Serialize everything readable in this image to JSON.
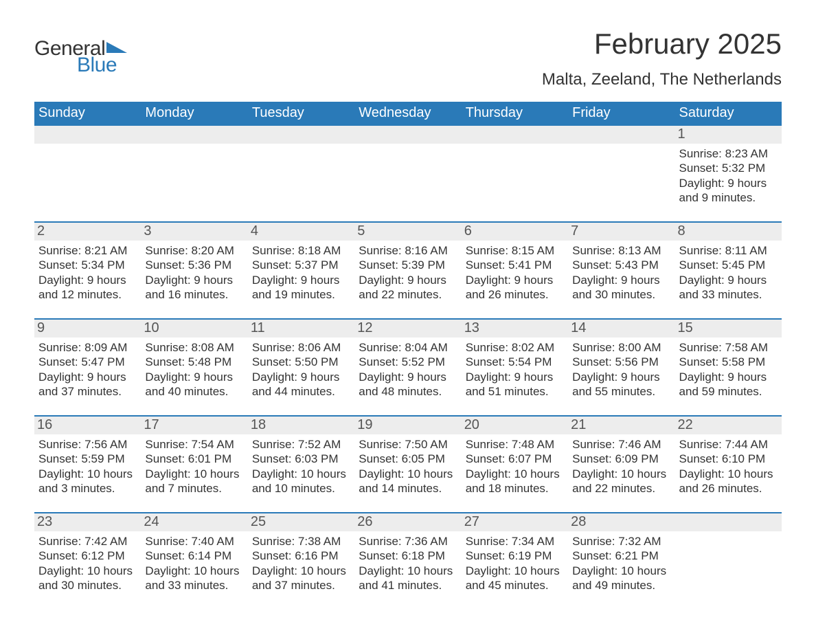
{
  "logo": {
    "general": "General",
    "blue": "Blue"
  },
  "title": "February 2025",
  "location": "Malta, Zeeland, The Netherlands",
  "colors": {
    "accent": "#2a7ab8",
    "header_bg": "#2a7ab8",
    "daynum_bg": "#ededed",
    "text": "#333333",
    "background": "#ffffff"
  },
  "fonts": {
    "title_size_pt": 42,
    "location_size_pt": 24,
    "dow_size_pt": 20,
    "daynum_size_pt": 20,
    "info_size_pt": 17
  },
  "dow": [
    "Sunday",
    "Monday",
    "Tuesday",
    "Wednesday",
    "Thursday",
    "Friday",
    "Saturday"
  ],
  "weeks": [
    [
      null,
      null,
      null,
      null,
      null,
      null,
      {
        "d": "1",
        "sr": "8:23 AM",
        "ss": "5:32 PM",
        "dl": "9 hours and 9 minutes."
      }
    ],
    [
      {
        "d": "2",
        "sr": "8:21 AM",
        "ss": "5:34 PM",
        "dl": "9 hours and 12 minutes."
      },
      {
        "d": "3",
        "sr": "8:20 AM",
        "ss": "5:36 PM",
        "dl": "9 hours and 16 minutes."
      },
      {
        "d": "4",
        "sr": "8:18 AM",
        "ss": "5:37 PM",
        "dl": "9 hours and 19 minutes."
      },
      {
        "d": "5",
        "sr": "8:16 AM",
        "ss": "5:39 PM",
        "dl": "9 hours and 22 minutes."
      },
      {
        "d": "6",
        "sr": "8:15 AM",
        "ss": "5:41 PM",
        "dl": "9 hours and 26 minutes."
      },
      {
        "d": "7",
        "sr": "8:13 AM",
        "ss": "5:43 PM",
        "dl": "9 hours and 30 minutes."
      },
      {
        "d": "8",
        "sr": "8:11 AM",
        "ss": "5:45 PM",
        "dl": "9 hours and 33 minutes."
      }
    ],
    [
      {
        "d": "9",
        "sr": "8:09 AM",
        "ss": "5:47 PM",
        "dl": "9 hours and 37 minutes."
      },
      {
        "d": "10",
        "sr": "8:08 AM",
        "ss": "5:48 PM",
        "dl": "9 hours and 40 minutes."
      },
      {
        "d": "11",
        "sr": "8:06 AM",
        "ss": "5:50 PM",
        "dl": "9 hours and 44 minutes."
      },
      {
        "d": "12",
        "sr": "8:04 AM",
        "ss": "5:52 PM",
        "dl": "9 hours and 48 minutes."
      },
      {
        "d": "13",
        "sr": "8:02 AM",
        "ss": "5:54 PM",
        "dl": "9 hours and 51 minutes."
      },
      {
        "d": "14",
        "sr": "8:00 AM",
        "ss": "5:56 PM",
        "dl": "9 hours and 55 minutes."
      },
      {
        "d": "15",
        "sr": "7:58 AM",
        "ss": "5:58 PM",
        "dl": "9 hours and 59 minutes."
      }
    ],
    [
      {
        "d": "16",
        "sr": "7:56 AM",
        "ss": "5:59 PM",
        "dl": "10 hours and 3 minutes."
      },
      {
        "d": "17",
        "sr": "7:54 AM",
        "ss": "6:01 PM",
        "dl": "10 hours and 7 minutes."
      },
      {
        "d": "18",
        "sr": "7:52 AM",
        "ss": "6:03 PM",
        "dl": "10 hours and 10 minutes."
      },
      {
        "d": "19",
        "sr": "7:50 AM",
        "ss": "6:05 PM",
        "dl": "10 hours and 14 minutes."
      },
      {
        "d": "20",
        "sr": "7:48 AM",
        "ss": "6:07 PM",
        "dl": "10 hours and 18 minutes."
      },
      {
        "d": "21",
        "sr": "7:46 AM",
        "ss": "6:09 PM",
        "dl": "10 hours and 22 minutes."
      },
      {
        "d": "22",
        "sr": "7:44 AM",
        "ss": "6:10 PM",
        "dl": "10 hours and 26 minutes."
      }
    ],
    [
      {
        "d": "23",
        "sr": "7:42 AM",
        "ss": "6:12 PM",
        "dl": "10 hours and 30 minutes."
      },
      {
        "d": "24",
        "sr": "7:40 AM",
        "ss": "6:14 PM",
        "dl": "10 hours and 33 minutes."
      },
      {
        "d": "25",
        "sr": "7:38 AM",
        "ss": "6:16 PM",
        "dl": "10 hours and 37 minutes."
      },
      {
        "d": "26",
        "sr": "7:36 AM",
        "ss": "6:18 PM",
        "dl": "10 hours and 41 minutes."
      },
      {
        "d": "27",
        "sr": "7:34 AM",
        "ss": "6:19 PM",
        "dl": "10 hours and 45 minutes."
      },
      {
        "d": "28",
        "sr": "7:32 AM",
        "ss": "6:21 PM",
        "dl": "10 hours and 49 minutes."
      },
      null
    ]
  ],
  "labels": {
    "sunrise": "Sunrise: ",
    "sunset": "Sunset: ",
    "daylight": "Daylight: "
  }
}
